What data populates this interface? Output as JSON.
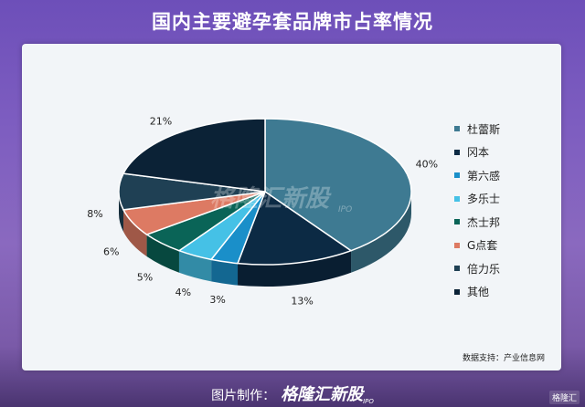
{
  "title": "国内主要避孕套品牌市占率情况",
  "source_note": "数据支持：产业信息网",
  "footer": {
    "prefix": "图片制作：",
    "brand": "格隆汇新股",
    "brand_sub": "IPO"
  },
  "watermark": {
    "brand": "格隆汇新股",
    "sub": "IPO"
  },
  "corner_logo": "格隆汇",
  "chart_data": {
    "type": "pie",
    "title": "国内主要避孕套品牌市占率情况",
    "labels": [
      "杜蕾斯",
      "冈本",
      "第六感",
      "多乐士",
      "杰士邦",
      "G点套",
      "倍力乐",
      "其他"
    ],
    "values": [
      40,
      13,
      3,
      4,
      5,
      6,
      8,
      21
    ],
    "data_labels": [
      "40%",
      "13%",
      "3%",
      "4%",
      "5%",
      "6%",
      "8%",
      "21%"
    ],
    "colors": [
      "#3e7a92",
      "#0c2a44",
      "#1a8fc9",
      "#45c1e6",
      "#0a6457",
      "#dd7a63",
      "#1f4054",
      "#0b2236"
    ],
    "legend_position": "right",
    "style": "3d"
  }
}
